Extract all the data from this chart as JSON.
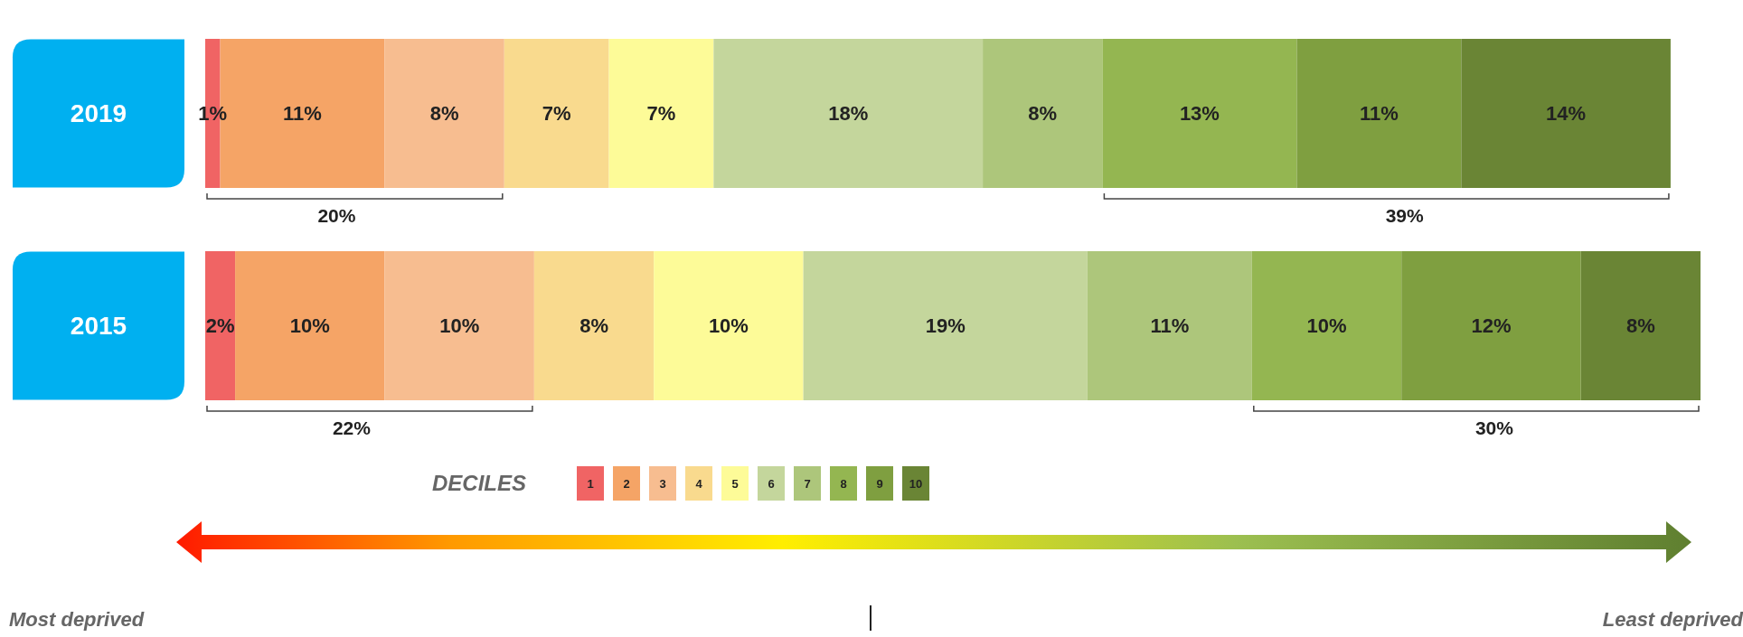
{
  "chart_data": {
    "type": "bar",
    "orientation": "horizontal",
    "stacked": true,
    "categories": [
      "2019",
      "2015"
    ],
    "legend_title": "DECILES",
    "legend": "bottom",
    "series": [
      {
        "name": "1",
        "color": "#f06464",
        "values": [
          1,
          2
        ],
        "value_labels": [
          "1%",
          "2%"
        ]
      },
      {
        "name": "2",
        "color": "#f5a466",
        "values": [
          11,
          10
        ],
        "value_labels": [
          "11%",
          "10%"
        ]
      },
      {
        "name": "3",
        "color": "#f7bd90",
        "values": [
          8,
          10
        ],
        "value_labels": [
          "8%",
          "10%"
        ]
      },
      {
        "name": "4",
        "color": "#f9da8e",
        "values": [
          7,
          8
        ],
        "value_labels": [
          "7%",
          "8%"
        ]
      },
      {
        "name": "5",
        "color": "#fdfb98",
        "values": [
          7,
          10
        ],
        "value_labels": [
          "7%",
          "10%"
        ]
      },
      {
        "name": "6",
        "color": "#c4d69c",
        "values": [
          18,
          19
        ],
        "value_labels": [
          "18%",
          "19%"
        ]
      },
      {
        "name": "7",
        "color": "#adc67b",
        "values": [
          8,
          11
        ],
        "value_labels": [
          "8%",
          "11%"
        ]
      },
      {
        "name": "8",
        "color": "#94b651",
        "values": [
          13,
          10
        ],
        "value_labels": [
          "13%",
          "10%"
        ]
      },
      {
        "name": "9",
        "color": "#7f9f40",
        "values": [
          11,
          12
        ],
        "value_labels": [
          "11%",
          "12%"
        ]
      },
      {
        "name": "10",
        "color": "#6a8535",
        "values": [
          14,
          8
        ],
        "value_labels": [
          "14%",
          "8%"
        ]
      }
    ],
    "annotations": [
      "20%",
      "39%",
      "22%",
      "30%",
      "Most deprived",
      "Least deprived"
    ]
  }
}
